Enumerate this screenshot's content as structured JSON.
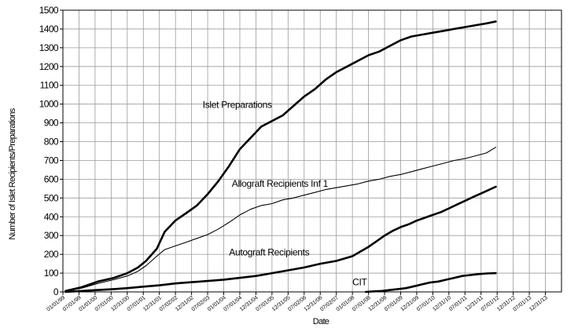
{
  "chart_data": {
    "type": "line",
    "title": "",
    "xlabel": "Date",
    "ylabel": "Number of Islet Recipients/Preparations",
    "ylim": [
      0,
      1500
    ],
    "ytick_step": 100,
    "grid": true,
    "x_ticks": [
      "01/01/99",
      "07/01/99",
      "01/01/00",
      "07/01/00",
      "12/31/00",
      "07/01/01",
      "12/31/01",
      "07/02/02",
      "12/31/02",
      "07/02/03",
      "01/01/04",
      "07/01/04",
      "12/31/04",
      "07/01/05",
      "12/31/05",
      "07/02/06",
      "12/31/06",
      "07/02/07",
      "01/01/08",
      "07/01/08",
      "12/31/08",
      "07/01/09",
      "12/31/09",
      "07/01/10",
      "12/31/10",
      "07/01/11",
      "12/31/11",
      "07/01/12",
      "12/31/12",
      "07/01/13",
      "12/31/13"
    ],
    "line_color": "#000000",
    "series": [
      {
        "name": "Islet Preparations",
        "stroke": "bold",
        "x": [
          "1999-02-01",
          "1999-08-01",
          "2000-02-01",
          "2000-08-01",
          "2001-01-01",
          "2001-05-01",
          "2001-08-01",
          "2001-12-01",
          "2002-03-01",
          "2002-07-01",
          "2002-11-01",
          "2003-03-01",
          "2003-07-01",
          "2003-11-01",
          "2004-03-01",
          "2004-07-01",
          "2004-11-01",
          "2005-03-01",
          "2005-07-01",
          "2005-11-01",
          "2006-03-01",
          "2006-07-01",
          "2006-11-01",
          "2007-03-01",
          "2007-07-01",
          "2007-11-01",
          "2008-03-01",
          "2008-07-01",
          "2008-11-01",
          "2009-03-01",
          "2009-07-01",
          "2009-11-01",
          "2010-03-01",
          "2010-07-01",
          "2010-11-01",
          "2011-03-01",
          "2011-07-01",
          "2011-11-01",
          "2012-03-01",
          "2012-06-15"
        ],
        "values": [
          5,
          25,
          55,
          75,
          100,
          130,
          165,
          230,
          320,
          380,
          420,
          460,
          520,
          590,
          670,
          760,
          820,
          880,
          910,
          940,
          990,
          1040,
          1080,
          1130,
          1170,
          1200,
          1230,
          1260,
          1280,
          1310,
          1340,
          1360,
          1370,
          1380,
          1390,
          1400,
          1410,
          1420,
          1430,
          1440
        ]
      },
      {
        "name": "Allograft Recipients Inf 1",
        "stroke": "thin",
        "x": [
          "1999-02-01",
          "1999-08-01",
          "2000-02-01",
          "2000-08-01",
          "2001-01-01",
          "2001-05-01",
          "2001-08-01",
          "2001-12-01",
          "2002-03-01",
          "2002-07-01",
          "2002-11-01",
          "2003-03-01",
          "2003-07-01",
          "2003-11-01",
          "2004-03-01",
          "2004-07-01",
          "2004-11-01",
          "2005-03-01",
          "2005-07-01",
          "2005-11-01",
          "2006-03-01",
          "2006-07-01",
          "2006-11-01",
          "2007-03-01",
          "2007-07-01",
          "2007-11-01",
          "2008-03-01",
          "2008-07-01",
          "2008-11-01",
          "2009-03-01",
          "2009-07-01",
          "2009-11-01",
          "2010-03-01",
          "2010-07-01",
          "2010-11-01",
          "2011-03-01",
          "2011-07-01",
          "2011-11-01",
          "2012-03-01",
          "2012-06-15"
        ],
        "values": [
          3,
          20,
          45,
          65,
          85,
          110,
          140,
          190,
          225,
          245,
          265,
          285,
          305,
          335,
          370,
          410,
          440,
          460,
          470,
          490,
          500,
          515,
          530,
          545,
          555,
          565,
          575,
          590,
          600,
          615,
          625,
          640,
          655,
          670,
          685,
          700,
          710,
          725,
          740,
          770
        ]
      },
      {
        "name": "Autograft Recipients",
        "stroke": "bold",
        "x": [
          "1999-02-01",
          "1999-08-01",
          "2000-02-01",
          "2000-08-01",
          "2001-01-01",
          "2001-07-01",
          "2002-01-01",
          "2002-07-01",
          "2003-01-01",
          "2003-07-01",
          "2004-01-01",
          "2004-07-01",
          "2005-01-01",
          "2005-07-01",
          "2006-01-01",
          "2006-07-01",
          "2007-01-01",
          "2007-07-01",
          "2008-01-01",
          "2008-04-01",
          "2008-07-01",
          "2008-10-01",
          "2009-01-01",
          "2009-04-01",
          "2009-07-01",
          "2009-10-01",
          "2010-01-01",
          "2010-04-01",
          "2010-07-01",
          "2010-10-01",
          "2011-01-01",
          "2011-04-01",
          "2011-07-01",
          "2011-10-01",
          "2012-01-01",
          "2012-06-15"
        ],
        "values": [
          0,
          5,
          10,
          15,
          20,
          28,
          35,
          45,
          52,
          58,
          65,
          75,
          85,
          100,
          115,
          130,
          150,
          165,
          190,
          215,
          240,
          270,
          300,
          325,
          345,
          360,
          380,
          395,
          410,
          425,
          445,
          465,
          485,
          505,
          525,
          560
        ]
      },
      {
        "name": "CIT",
        "stroke": "bold",
        "x": [
          "2008-06-01",
          "2008-09-01",
          "2008-12-01",
          "2009-03-01",
          "2009-06-01",
          "2009-09-01",
          "2009-12-01",
          "2010-03-01",
          "2010-06-01",
          "2010-09-01",
          "2010-12-01",
          "2011-03-01",
          "2011-06-01",
          "2011-09-01",
          "2011-12-01",
          "2012-03-01",
          "2012-06-15"
        ],
        "values": [
          0,
          3,
          5,
          10,
          15,
          20,
          30,
          40,
          50,
          55,
          65,
          75,
          85,
          90,
          95,
          98,
          100
        ]
      }
    ]
  }
}
